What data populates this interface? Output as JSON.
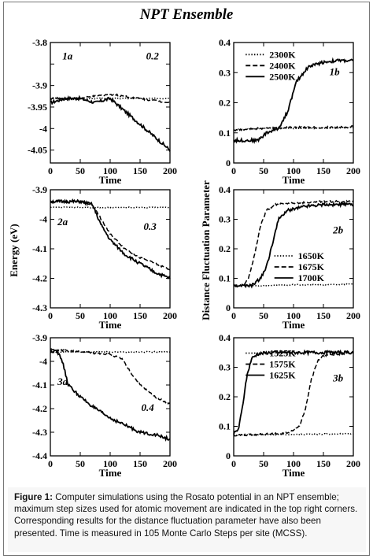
{
  "figure": {
    "title": "NPT Ensemble",
    "ylabel_left": "Energy (eV)",
    "ylabel_right": "Distance Fluctuation Parameter",
    "caption_label": "Figure 1:",
    "caption_text": "Computer simulations using the Rosato potential in an NPT ensemble; maximum step sizes used for atomic movement are indicated in the top right corners. Corresponding results for the distance fluctuation parameter have also been presented. Time is measured in 105 Monte Carlo Steps per site (MCSS)."
  },
  "chart_data": [
    {
      "type": "line",
      "id": "1a",
      "panel_label": "1a",
      "step_label": "0.2",
      "xlabel": "Time",
      "ylabel": "Energy (eV)",
      "xlim": [
        0,
        200
      ],
      "ylim": [
        -4.08,
        -3.8
      ],
      "xticks": [
        0,
        50,
        100,
        150,
        200
      ],
      "yticks": [
        -3.8,
        -3.85,
        -3.9,
        -3.95,
        -4,
        -4.05
      ],
      "ytick_labels": [
        "-3.8",
        "",
        "-3.9",
        "-3.95",
        "-4",
        "-4.05"
      ],
      "series": [
        {
          "style": "dotted",
          "x": [
            0,
            50,
            100,
            150,
            200
          ],
          "y": [
            -3.93,
            -3.93,
            -3.93,
            -3.93,
            -3.93
          ]
        },
        {
          "style": "dashed",
          "x": [
            0,
            50,
            100,
            150,
            200
          ],
          "y": [
            -3.93,
            -3.93,
            -3.92,
            -3.93,
            -3.94
          ]
        },
        {
          "style": "solid",
          "x": [
            0,
            25,
            50,
            75,
            100,
            125,
            150,
            175,
            200
          ],
          "y": [
            -3.94,
            -3.93,
            -3.93,
            -3.94,
            -3.93,
            -3.96,
            -3.99,
            -4.02,
            -4.05
          ]
        }
      ]
    },
    {
      "type": "line",
      "id": "1b",
      "panel_label": "1b",
      "xlabel": "Time",
      "ylabel": "Distance Fluctuation Parameter",
      "xlim": [
        0,
        200
      ],
      "ylim": [
        0,
        0.4
      ],
      "xticks": [
        0,
        50,
        100,
        150,
        200
      ],
      "yticks": [
        0,
        0.1,
        0.2,
        0.3,
        0.4
      ],
      "legend": {
        "position": "top-left",
        "entries": [
          "2300K",
          "2400K",
          "2500K"
        ]
      },
      "series": [
        {
          "name": "2300K",
          "style": "dotted",
          "x": [
            0,
            50,
            100,
            150,
            200
          ],
          "y": [
            0.11,
            0.115,
            0.115,
            0.115,
            0.118
          ]
        },
        {
          "name": "2400K",
          "style": "dashed",
          "x": [
            0,
            50,
            100,
            150,
            200
          ],
          "y": [
            0.11,
            0.115,
            0.118,
            0.118,
            0.12
          ]
        },
        {
          "name": "2500K",
          "style": "solid",
          "x": [
            0,
            40,
            55,
            75,
            90,
            105,
            125,
            150,
            175,
            200
          ],
          "y": [
            0.075,
            0.075,
            0.1,
            0.115,
            0.17,
            0.27,
            0.32,
            0.335,
            0.34,
            0.34
          ]
        }
      ]
    },
    {
      "type": "line",
      "id": "2a",
      "panel_label": "2a",
      "step_label": "0.3",
      "xlabel": "Time",
      "ylabel": "Energy (eV)",
      "xlim": [
        0,
        200
      ],
      "ylim": [
        -4.3,
        -3.9
      ],
      "xticks": [
        0,
        50,
        100,
        150,
        200
      ],
      "yticks": [
        -3.9,
        -4,
        -4.1,
        -4.2,
        -4.3
      ],
      "series": [
        {
          "style": "dotted",
          "x": [
            0,
            50,
            100,
            150,
            200
          ],
          "y": [
            -3.96,
            -3.96,
            -3.96,
            -3.96,
            -3.96
          ]
        },
        {
          "style": "dashed",
          "x": [
            0,
            50,
            70,
            85,
            100,
            125,
            150,
            175,
            200
          ],
          "y": [
            -3.94,
            -3.94,
            -3.95,
            -4.0,
            -4.05,
            -4.1,
            -4.13,
            -4.15,
            -4.17
          ]
        },
        {
          "style": "solid",
          "x": [
            0,
            50,
            70,
            85,
            100,
            125,
            150,
            175,
            200
          ],
          "y": [
            -3.94,
            -3.94,
            -3.95,
            -4.02,
            -4.07,
            -4.12,
            -4.15,
            -4.18,
            -4.2
          ]
        }
      ]
    },
    {
      "type": "line",
      "id": "2b",
      "panel_label": "2b",
      "xlabel": "Time",
      "ylabel": "Distance Fluctuation Parameter",
      "xlim": [
        0,
        200
      ],
      "ylim": [
        0,
        0.4
      ],
      "xticks": [
        0,
        50,
        100,
        150,
        200
      ],
      "yticks": [
        0,
        0.1,
        0.2,
        0.3,
        0.4
      ],
      "legend": {
        "position": "bottom-right",
        "entries": [
          "1650K",
          "1675K",
          "1700K"
        ]
      },
      "series": [
        {
          "name": "1650K",
          "style": "dotted",
          "x": [
            0,
            50,
            100,
            150,
            200
          ],
          "y": [
            0.075,
            0.075,
            0.078,
            0.078,
            0.08
          ]
        },
        {
          "name": "1675K",
          "style": "dashed",
          "x": [
            0,
            15,
            25,
            35,
            45,
            55,
            70,
            100,
            150,
            200
          ],
          "y": [
            0.075,
            0.075,
            0.1,
            0.18,
            0.28,
            0.33,
            0.35,
            0.355,
            0.36,
            0.36
          ]
        },
        {
          "name": "1700K",
          "style": "solid",
          "x": [
            0,
            30,
            45,
            55,
            65,
            75,
            90,
            120,
            150,
            200
          ],
          "y": [
            0.075,
            0.075,
            0.1,
            0.14,
            0.22,
            0.3,
            0.33,
            0.345,
            0.35,
            0.35
          ]
        }
      ]
    },
    {
      "type": "line",
      "id": "3a",
      "panel_label": "3a",
      "step_label": "0.4",
      "xlabel": "Time",
      "ylabel": "Energy (eV)",
      "xlim": [
        0,
        200
      ],
      "ylim": [
        -4.4,
        -3.9
      ],
      "xticks": [
        0,
        50,
        100,
        150,
        200
      ],
      "yticks": [
        -3.9,
        -4,
        -4.1,
        -4.2,
        -4.3,
        -4.4
      ],
      "series": [
        {
          "style": "dotted",
          "x": [
            0,
            50,
            100,
            150,
            200
          ],
          "y": [
            -3.96,
            -3.96,
            -3.96,
            -3.96,
            -3.96
          ]
        },
        {
          "style": "dashed",
          "x": [
            0,
            50,
            100,
            120,
            135,
            150,
            175,
            200
          ],
          "y": [
            -3.95,
            -3.96,
            -3.97,
            -3.99,
            -4.05,
            -4.1,
            -4.15,
            -4.18
          ]
        },
        {
          "style": "solid",
          "x": [
            0,
            10,
            20,
            30,
            50,
            75,
            100,
            125,
            150,
            175,
            200
          ],
          "y": [
            -3.96,
            -3.95,
            -4.0,
            -4.1,
            -4.15,
            -4.2,
            -4.24,
            -4.27,
            -4.3,
            -4.31,
            -4.33
          ]
        }
      ]
    },
    {
      "type": "line",
      "id": "3b",
      "panel_label": "3b",
      "xlabel": "Time",
      "ylabel": "Distance Fluctuation Parameter",
      "xlim": [
        0,
        200
      ],
      "ylim": [
        0,
        0.4
      ],
      "xticks": [
        0,
        50,
        100,
        150,
        200
      ],
      "yticks": [
        0,
        0.1,
        0.2,
        0.3,
        0.4
      ],
      "legend": {
        "position": "top-left",
        "entries": [
          "1525K",
          "1575K",
          "1625K"
        ]
      },
      "series": [
        {
          "name": "1525K",
          "style": "dotted",
          "x": [
            0,
            50,
            100,
            150,
            200
          ],
          "y": [
            0.07,
            0.072,
            0.072,
            0.074,
            0.075
          ]
        },
        {
          "name": "1575K",
          "style": "dashed",
          "x": [
            0,
            80,
            95,
            110,
            120,
            130,
            140,
            150,
            175,
            200
          ],
          "y": [
            0.07,
            0.075,
            0.08,
            0.1,
            0.16,
            0.26,
            0.32,
            0.34,
            0.345,
            0.35
          ]
        },
        {
          "name": "1625K",
          "style": "solid",
          "x": [
            0,
            8,
            15,
            22,
            30,
            40,
            60,
            100,
            150,
            200
          ],
          "y": [
            0.075,
            0.09,
            0.17,
            0.27,
            0.33,
            0.345,
            0.35,
            0.35,
            0.35,
            0.35
          ]
        }
      ]
    }
  ]
}
